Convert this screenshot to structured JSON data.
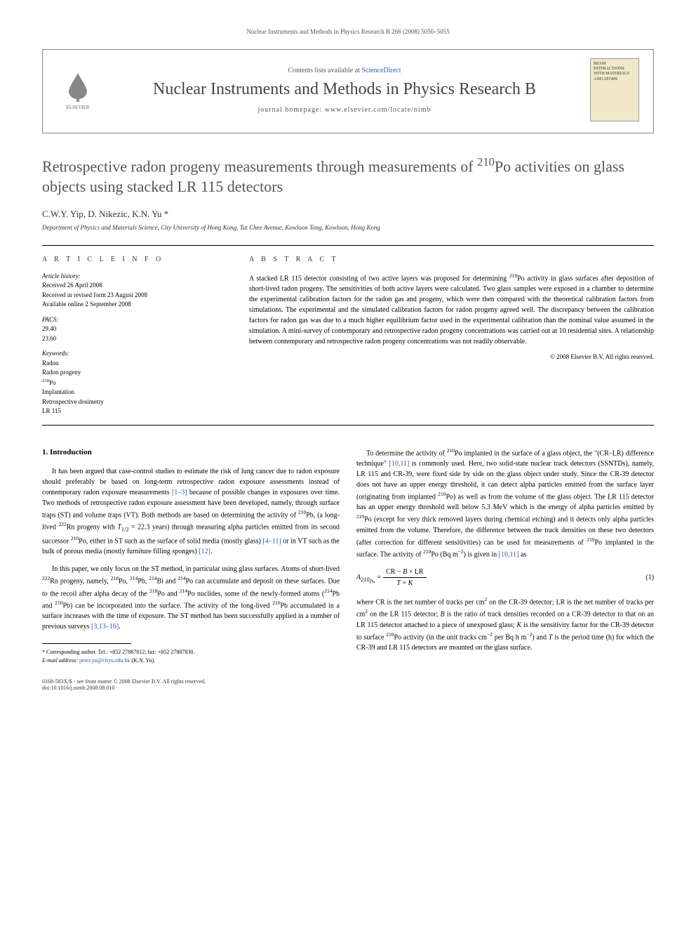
{
  "running_header": "Nuclear Instruments and Methods in Physics Research B 266 (2008) 5050–5055",
  "header": {
    "contents_prefix": "Contents lists available at ",
    "contents_link": "ScienceDirect",
    "journal_name": "Nuclear Instruments and Methods in Physics Research B",
    "homepage_prefix": "journal homepage: ",
    "homepage_url": "www.elsevier.com/locate/nimb",
    "publisher_label": "ELSEVIER",
    "cover_text": "BEAM INTERACTIONS WITH MATERIALS AND ATOMS"
  },
  "title_html": "Retrospective radon progeny measurements through measurements of <sup>210</sup>Po activities on glass objects using stacked LR 115 detectors",
  "authors": "C.W.Y. Yip, D. Nikezic, K.N. Yu *",
  "affiliation": "Department of Physics and Materials Science, City University of Hong Kong, Tat Chee Avenue, Kowloon Tong, Kowloon, Hong Kong",
  "article_info": {
    "heading": "A R T I C L E   I N F O",
    "history_label": "Article history:",
    "history_lines": [
      "Received 26 April 2008",
      "Received in revised form 23 August 2008",
      "Available online 2 September 2008"
    ],
    "pacs_label": "PACS:",
    "pacs_lines": [
      "29.40",
      "23.60"
    ],
    "keywords_label": "Keywords:",
    "keywords_lines": [
      "Radon",
      "Radon progeny",
      "<sup>210</sup>Po",
      "Implantation",
      "Retrospective dosimetry",
      "LR 115"
    ]
  },
  "abstract": {
    "heading": "A B S T R A C T",
    "text_html": "A stacked LR 115 detector consisting of two active layers was proposed for determining <sup>210</sup>Po activity in glass surfaces after deposition of short-lived radon progeny. The sensitivities of both active layers were calculated. Two glass samples were exposed in a chamber to determine the experimental calibration factors for the radon gas and progeny, which were then compared with the theoretical calibration factors from simulations. The experimental and the simulated calibration factors for radon progeny agreed well. The discrepancy between the calibration factors for radon gas was due to a much higher equilibrium factor used in the experimental calibration than the nominal value assumed in the simulation. A mini-survey of contemporary and retrospective radon progeny concentrations was carried out at 10 residential sites. A relationship between contemporary and retrospective radon progeny concentrations was not readily observable.",
    "copyright": "© 2008 Elsevier B.V. All rights reserved."
  },
  "section1": {
    "heading": "1. Introduction",
    "p1_html": "It has been argued that case-control studies to estimate the risk of lung cancer due to radon exposure should preferably be based on long-term retrospective radon exposure assessments instead of contemporary radon exposure measurements <a class='ref'>[1–3]</a> because of possible changes in exposures over time. Two methods of retrospective radon exposure assessment have been developed, namely, through surface traps (ST) and volume traps (VT). Both methods are based on determining the activity of <sup>210</sup>Pb, (a long-lived <sup>222</sup>Rn progeny with <i>T</i><sub>1/2</sub> = 22.3 years) through measuring alpha particles emitted from its second successor <sup>210</sup>Po, either in ST such as the surface of solid media (mostly glass) <a class='ref'>[4–11]</a> or in VT such as the bulk of porous media (mostly furniture filling sponges) <a class='ref'>[12]</a>.",
    "p2_html": "In this paper, we only focus on the ST method, in particular using glass surfaces. Atoms of short-lived <sup>222</sup>Rn progeny, namely, <sup>218</sup>Po, <sup>214</sup>Pb, <sup>214</sup>Bi and <sup>214</sup>Po can accumulate and deposit on these surfaces. Due to the recoil after alpha decay of the <sup>218</sup>Po and <sup>214</sup>Po nuclides, some of the newly-formed atoms (<sup>214</sup>Pb and <sup>210</sup>Pb) can be incorporated into the surface. The activity of the long-lived <sup>210</sup>Pb accumulated in a surface increases with the time of exposure. The ST method has been successfully applied in a number of previous surveys <a class='ref'>[3,13–16]</a>."
  },
  "col2": {
    "p1_html": "To determine the activity of <sup>210</sup>Po implanted in the surface of a glass object, the \"(CR–LR) difference technique\" <a class='ref'>[10,11]</a> is commonly used. Here, two solid-state nuclear track detectors (SSNTDs), namely, LR 115 and CR-39, were fixed side by side on the glass object under study. Since the CR-39 detector does not have an upper energy threshold, it can detect alpha particles emitted from the surface layer (originating from implanted <sup>210</sup>Po) as well as from the volume of the glass object. The LR 115 detector has an upper energy threshold well below 5.3 MeV which is the energy of alpha particles emitted by <sup>210</sup>Po (except for very thick removed layers during chemical etching) and it detects only alpha particles emitted from the volume. Therefore, the difference between the track densities on these two detectors (after correction for different sensitivities) can be used for measurements of <sup>210</sup>Po implanted in the surface. The activity of <sup>210</sup>Po (Bq m<sup>−2</sup>) is given in <a class='ref'>[10,11]</a> as",
    "eq_num": "(1)",
    "p2_html": "where CR is the net number of tracks per cm<sup>2</sup> on the CR-39 detector; LR is the net number of tracks per cm<sup>2</sup> on the LR 115 detector; <i>B</i> is the ratio of track densities recorded on a CR-39 detector to that on an LR 115 detector attached to a piece of unexposed glass; <i>K</i> is the sensitivity factor for the CR-39 detector to surface <sup>210</sup>Po activity (in the unit tracks cm<sup>−2</sup> per Bq h m<sup>−2</sup>) and <i>T</i> is the period time (h) for which the CR-39 and LR 115 detectors are mounted on the glass surface."
  },
  "footnote": {
    "corr_html": "* Corresponding author. Tel.: +852 27887812; fax: +852 27887830.",
    "email_html": "<i>E-mail address:</i> <a class='ref'>peter.yu@cityu.edu.hk</a> (K.N. Yu)."
  },
  "footer": {
    "left_line1": "0168-583X/$ - see front matter © 2008 Elsevier B.V. All rights reserved.",
    "left_line2": "doi:10.1016/j.nimb.2008.08.010"
  },
  "colors": {
    "text": "#000000",
    "muted": "#555555",
    "link": "#2a5db0",
    "border": "#888888",
    "cover_bg": "#f0e8c8"
  }
}
